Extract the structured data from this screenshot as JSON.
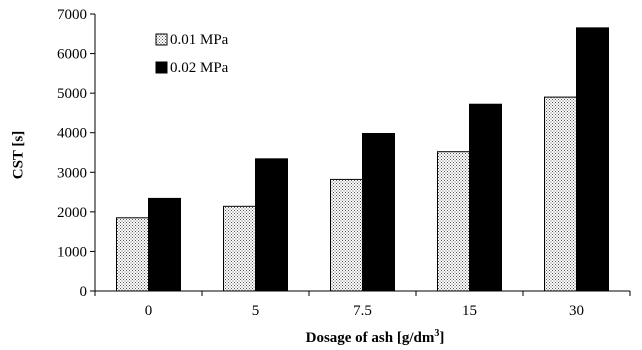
{
  "chart_data": {
    "type": "bar",
    "categories": [
      "0",
      "5",
      "7.5",
      "15",
      "30"
    ],
    "series": [
      {
        "name": "0.01 MPa",
        "values": [
          1850,
          2140,
          2820,
          3520,
          4900
        ],
        "pattern": "dotted",
        "color": "#ffffff"
      },
      {
        "name": "0.02 MPa",
        "values": [
          2340,
          3340,
          3980,
          4720,
          6650
        ],
        "pattern": "solid",
        "color": "#000000"
      }
    ],
    "title": "",
    "xlabel_main": "Dosage of ash [g/dm",
    "xlabel_sup": "3",
    "xlabel_end": "]",
    "ylabel": "CST [s]",
    "ylim": [
      0,
      7000
    ],
    "yticks": [
      0,
      1000,
      2000,
      3000,
      4000,
      5000,
      6000,
      7000
    ],
    "grid": false,
    "legend_position": "top-left"
  }
}
